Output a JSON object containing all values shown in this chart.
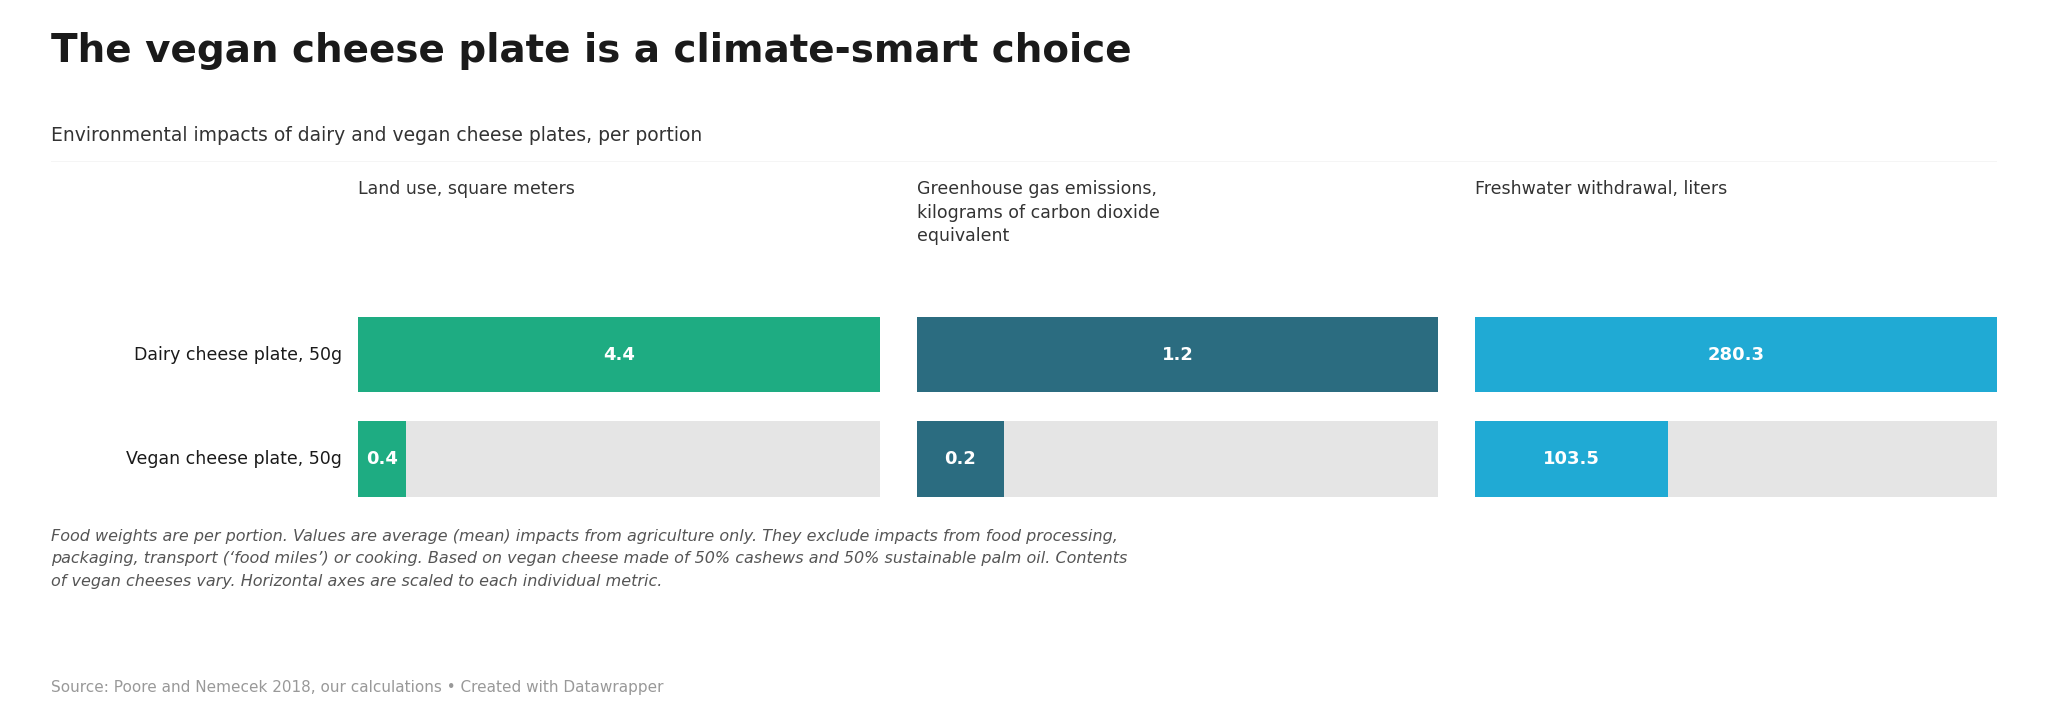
{
  "title": "The vegan cheese plate is a climate-smart choice",
  "subtitle": "Environmental impacts of dairy and vegan cheese plates, per portion",
  "footnote": "Food weights are per portion. Values are average (mean) impacts from agriculture only. They exclude impacts from food processing,\npackaging, transport (‘food miles’) or cooking. Based on vegan cheese made of 50% cashews and 50% sustainable palm oil. Contents\nof vegan cheeses vary. Horizontal axes are scaled to each individual metric.",
  "source": "Source: Poore and Nemecek 2018, our calculations • Created with Datawrapper",
  "row_labels": [
    "Dairy cheese plate, 50g",
    "Vegan cheese plate, 50g"
  ],
  "metrics": [
    {
      "title": "Land use, square meters",
      "values": [
        4.4,
        0.4
      ],
      "display_values": [
        "4.4",
        "0.4"
      ],
      "max_val": 4.4,
      "color": "#1eac82"
    },
    {
      "title": "Greenhouse gas emissions,\nkilograms of carbon dioxide\nequivalent",
      "values": [
        1.2,
        0.2
      ],
      "display_values": [
        "1.2",
        "0.2"
      ],
      "max_val": 1.2,
      "color": "#2b6c80"
    },
    {
      "title": "Freshwater withdrawal, liters",
      "values": [
        280.3,
        103.5
      ],
      "display_values": [
        "280.3",
        "103.5"
      ],
      "max_val": 280.3,
      "color": "#20aad4"
    }
  ],
  "background_color": "#ffffff",
  "bar_background": "#e5e5e5",
  "title_fontsize": 28,
  "subtitle_fontsize": 13.5,
  "header_fontsize": 12.5,
  "row_label_fontsize": 12.5,
  "bar_label_fontsize": 13,
  "footnote_fontsize": 11.5,
  "source_fontsize": 11
}
